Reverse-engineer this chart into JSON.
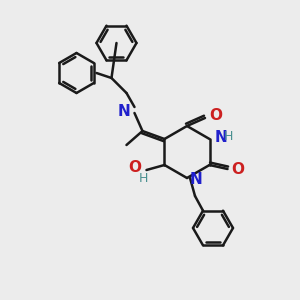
{
  "bg_color": "#ececec",
  "bond_color": "#1a1a1a",
  "bond_lw": 1.8,
  "atom_colors": {
    "N": "#2020cc",
    "O": "#cc2020",
    "H_label": "#4a9090"
  },
  "font_size_atom": 11,
  "font_size_h": 9,
  "ring_r": 20,
  "pyrim_r": 22
}
